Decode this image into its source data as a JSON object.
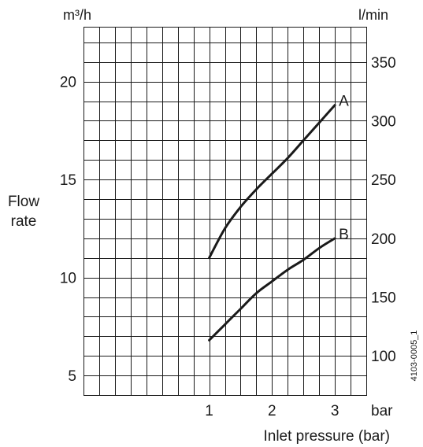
{
  "chart_data": {
    "type": "line",
    "title": "",
    "x_axis": {
      "label": "Inlet pressure (bar)",
      "unit": "bar",
      "ticks": [
        1,
        2,
        3
      ],
      "range": [
        -1,
        3.5
      ],
      "gridlines_every": 0.25
    },
    "y_axis_left": {
      "label": "Flow rate",
      "unit": "m³/h",
      "ticks": [
        5,
        10,
        15,
        20
      ],
      "range": [
        4,
        22.8
      ],
      "gridlines_every": 1
    },
    "y_axis_right": {
      "unit": "l/min",
      "ticks": [
        100,
        150,
        200,
        250,
        300,
        350
      ],
      "factor_per_left_unit": 16.6667
    },
    "grid": true,
    "series": [
      {
        "name": "A",
        "x": [
          1,
          1.25,
          1.5,
          1.75,
          2,
          2.25,
          2.5,
          2.75,
          3
        ],
        "y": [
          11,
          12.5,
          13.6,
          14.5,
          15.3,
          16.1,
          17,
          17.9,
          18.8
        ]
      },
      {
        "name": "B",
        "x": [
          1,
          1.25,
          1.5,
          1.75,
          2,
          2.25,
          2.5,
          2.75,
          3
        ],
        "y": [
          6.8,
          7.6,
          8.4,
          9.2,
          9.8,
          10.4,
          10.9,
          11.5,
          12
        ]
      }
    ],
    "reference_code": "4103-0005_1"
  }
}
